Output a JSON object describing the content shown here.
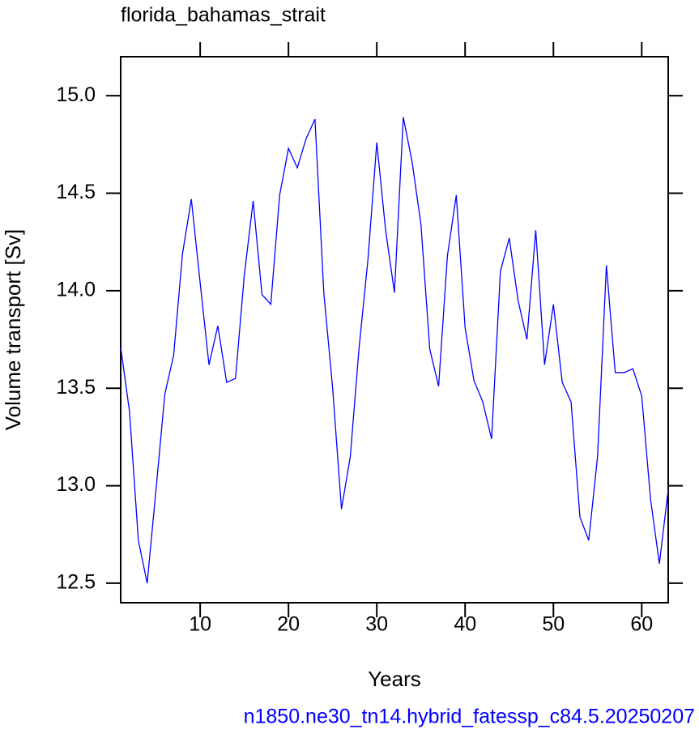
{
  "chart_data": {
    "type": "line",
    "title": "florida_bahamas_strait",
    "x_label": "Years",
    "y_label": "Volume transport [Sv]",
    "caption": "n1850.ne30_tn14.hybrid_fatessp_c84.5.20250207",
    "x": [
      1,
      2,
      3,
      4,
      5,
      6,
      7,
      8,
      9,
      10,
      11,
      12,
      13,
      14,
      15,
      16,
      17,
      18,
      19,
      20,
      21,
      22,
      23,
      24,
      25,
      26,
      27,
      28,
      29,
      30,
      31,
      32,
      33,
      34,
      35,
      36,
      37,
      38,
      39,
      40,
      41,
      42,
      43,
      44,
      45,
      46,
      47,
      48,
      49,
      50,
      51,
      52,
      53,
      54,
      55,
      56,
      57,
      58,
      59,
      60,
      61,
      62,
      63
    ],
    "series": [
      {
        "name": "Volume transport",
        "color": "#0000ff",
        "values": [
          13.71,
          13.38,
          12.72,
          12.5,
          12.98,
          13.47,
          13.67,
          14.19,
          14.47,
          14.04,
          13.62,
          13.82,
          13.53,
          13.55,
          14.08,
          14.46,
          13.98,
          13.93,
          14.49,
          14.73,
          14.63,
          14.78,
          14.88,
          13.99,
          13.5,
          12.88,
          13.15,
          13.71,
          14.16,
          14.76,
          14.31,
          13.99,
          14.89,
          14.66,
          14.34,
          13.7,
          13.51,
          14.18,
          14.49,
          13.81,
          13.54,
          13.43,
          13.24,
          14.1,
          14.27,
          13.95,
          13.75,
          14.31,
          13.62,
          13.93,
          13.53,
          13.43,
          12.84,
          12.72,
          13.15,
          14.13,
          13.58,
          13.58,
          13.6,
          13.46,
          12.93,
          12.6,
          12.98
        ]
      }
    ],
    "xlim": [
      1,
      63
    ],
    "ylim": [
      12.4,
      15.2
    ],
    "xticks": [
      10,
      20,
      30,
      40,
      50,
      60
    ],
    "yticks": [
      12.5,
      {
        "value": 13,
        "label": "13.0"
      },
      13.5,
      {
        "value": 14,
        "label": "14.0"
      },
      14.5,
      {
        "value": 15,
        "label": "15.0"
      }
    ],
    "grid": false
  }
}
